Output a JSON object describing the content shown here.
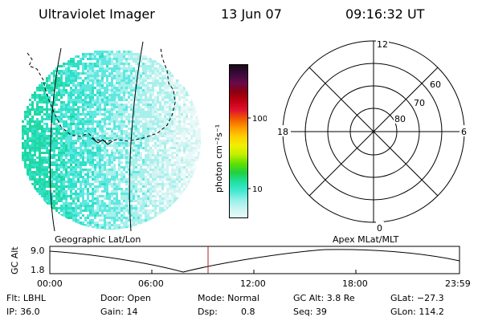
{
  "header": {
    "instrument": "Ultraviolet Imager",
    "date": "13 Jun 07",
    "time": "09:16:32 UT"
  },
  "colorbar": {
    "unit_label": "photon cm⁻²s⁻¹",
    "ticks": [
      "100",
      "10"
    ],
    "colors_top_to_bottom": [
      "#1a0a1a",
      "#3a0a3a",
      "#6a0a4a",
      "#8a0010",
      "#c00010",
      "#e01030",
      "#f05a00",
      "#ff9a00",
      "#ffd000",
      "#f0f000",
      "#c0f000",
      "#60e000",
      "#20d040",
      "#20e0a0",
      "#40e8d0",
      "#90f0e8",
      "#c8f4f0",
      "#e8fafa"
    ]
  },
  "left_panel": {
    "caption": "Geographic Lat/Lon"
  },
  "right_panel": {
    "caption": "Apex MLat/MLT",
    "mlt_labels": {
      "top": "12",
      "left": "18",
      "right": "6",
      "bottom": "0"
    },
    "lat_labels": [
      "60",
      "70",
      "80"
    ]
  },
  "altitude_plot": {
    "ylabel": "GC Alt",
    "yticks": [
      "9.0",
      "1.8"
    ],
    "xticks": [
      "00:00",
      "06:00",
      "12:00",
      "18:00",
      "23:59"
    ],
    "marker_time": "09:16",
    "marker_color": "#b02020"
  },
  "info": {
    "flt": "Flt: LBHL",
    "ip": "IP: 36.0",
    "door": "Door: Open",
    "gain": "Gain: 14",
    "mode": "Mode: Normal",
    "dsp_label": "Dsp:",
    "dsp_value": "0.8",
    "gc_alt": "GC Alt: 3.8 Re",
    "seq": "Seq: 39",
    "glat": "GLat: −27.3",
    "glon": "GLon: 114.2"
  }
}
